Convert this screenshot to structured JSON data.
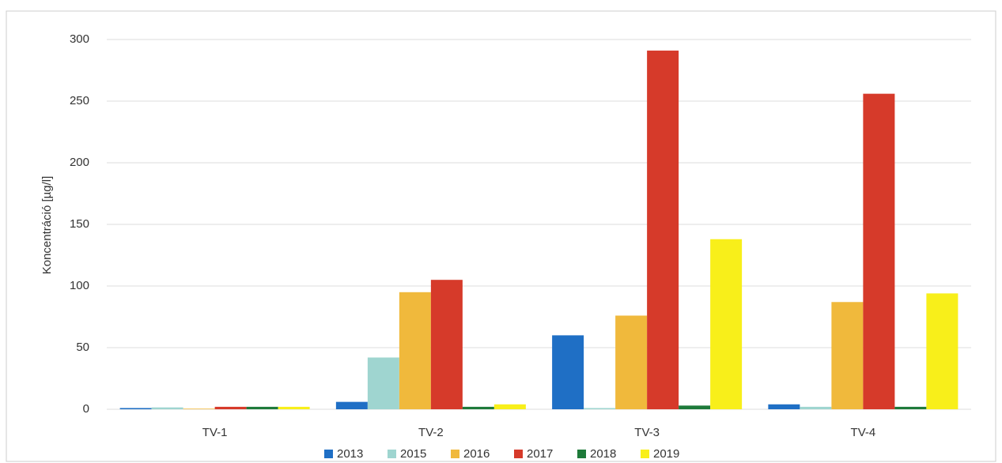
{
  "chart_data": {
    "type": "bar",
    "y_label": "Koncentráció [µg/l]",
    "categories": [
      "TV-1",
      "TV-2",
      "TV-3",
      "TV-4"
    ],
    "series": [
      {
        "name": "2013",
        "color": "#1f6fc5",
        "values": [
          1,
          6,
          60,
          4
        ]
      },
      {
        "name": "2015",
        "color": "#9fd5d0",
        "values": [
          1.5,
          42,
          1,
          2
        ]
      },
      {
        "name": "2016",
        "color": "#f0b93c",
        "values": [
          0.5,
          95,
          76,
          87
        ]
      },
      {
        "name": "2017",
        "color": "#d63a2a",
        "values": [
          2,
          105,
          291,
          256
        ]
      },
      {
        "name": "2018",
        "color": "#1e7a3a",
        "values": [
          2,
          2,
          3,
          2
        ]
      },
      {
        "name": "2019",
        "color": "#f8ef1a",
        "values": [
          2,
          4,
          138,
          94
        ]
      }
    ],
    "ylim": [
      0,
      300
    ],
    "yticks": [
      0,
      50,
      100,
      150,
      200,
      250,
      300
    ],
    "grid": true,
    "legend": "bottom"
  }
}
